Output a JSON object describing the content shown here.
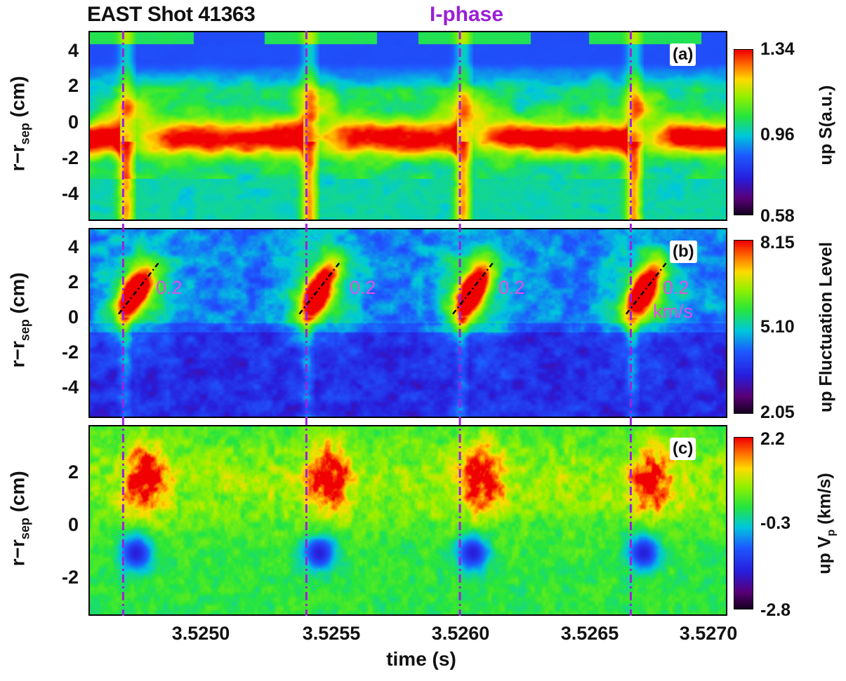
{
  "header": {
    "shot_label": "EAST Shot 41363",
    "phase_label": "I-phase"
  },
  "x_axis": {
    "label": "time (s)",
    "ticks": [
      "3.5250",
      "3.5255",
      "3.5260",
      "3.5265",
      "3.5270"
    ]
  },
  "colors": {
    "marker_line": "#a01fe0",
    "velocity_text": "#e14fe6",
    "fit_line": "#000000"
  },
  "panels": [
    {
      "letter": "(a)",
      "ylabel": "r−r",
      "ylabel_sub": "sep",
      "ylabel_unit": " (cm)",
      "yticks": [
        "4",
        "2",
        "0",
        "-2",
        "-4"
      ],
      "cbar_max": "1.34",
      "cbar_mid": "0.96",
      "cbar_min": "0.58",
      "cbar_label": "up S(a.u.)",
      "cbar_label_sub": ""
    },
    {
      "letter": "(b)",
      "ylabel": "r−r",
      "ylabel_sub": "sep",
      "ylabel_unit": " (cm)",
      "yticks": [
        "4",
        "2",
        "0",
        "-2",
        "-4"
      ],
      "cbar_max": "8.15",
      "cbar_mid": "5.10",
      "cbar_min": "2.05",
      "cbar_label": "up Fluctuation Level",
      "cbar_label_sub": "",
      "velocity_labels": [
        "0.2",
        "0.2",
        "0.2",
        "0.2"
      ],
      "velocity_unit": "km/s"
    },
    {
      "letter": "(c)",
      "ylabel": "r−r",
      "ylabel_sub": "sep",
      "ylabel_unit": " (cm)",
      "yticks": [
        "2",
        "0",
        "-2"
      ],
      "cbar_max": "2.2",
      "cbar_mid": "-0.3",
      "cbar_min": "-2.8",
      "cbar_label": "up V",
      "cbar_label_sub": "p",
      "cbar_label_unit": " (km/s)"
    }
  ],
  "chart_data": [
    {
      "type": "heatmap",
      "panel": "(a)",
      "xlim": [
        3.52453,
        3.52711
      ],
      "ylim": [
        -5.3,
        5.0
      ],
      "colorbar": [
        0.58,
        1.34
      ],
      "i_phase_times": [
        3.52467,
        3.52541,
        3.52603,
        3.52672
      ],
      "features": [
        {
          "name": "separatrix band",
          "y_center": -0.8,
          "value": 1.34
        },
        {
          "name": "upper region",
          "y_range": [
            2,
            5
          ],
          "value_range": [
            0.6,
            1.0
          ]
        }
      ]
    },
    {
      "type": "heatmap",
      "panel": "(b)",
      "xlim": [
        3.52453,
        3.52711
      ],
      "ylim": [
        -5.6,
        5.0
      ],
      "colorbar": [
        2.05,
        8.15
      ],
      "i_phase_times": [
        3.52467,
        3.52541,
        3.52603,
        3.52672
      ],
      "bursts": [
        {
          "t": 3.52468,
          "r": 1.2,
          "velocity_kms": 0.2
        },
        {
          "t": 3.52541,
          "r": 1.2,
          "velocity_kms": 0.2
        },
        {
          "t": 3.52603,
          "r": 1.5,
          "velocity_kms": 0.2
        },
        {
          "t": 3.52673,
          "r": 1.2,
          "velocity_kms": 0.2
        }
      ]
    },
    {
      "type": "heatmap",
      "panel": "(c)",
      "xlim": [
        3.52453,
        3.52711
      ],
      "ylim": [
        -3.3,
        3.6
      ],
      "colorbar": [
        -2.8,
        2.2
      ],
      "i_phase_times": [
        3.52467,
        3.52541,
        3.52603,
        3.52672
      ],
      "features": [
        {
          "name": "positive Vp",
          "y_range": [
            0.5,
            3
          ],
          "value": 2.2
        },
        {
          "name": "negative Vp",
          "y_range": [
            -1.5,
            -0.3
          ],
          "value": -2.8
        }
      ]
    }
  ]
}
